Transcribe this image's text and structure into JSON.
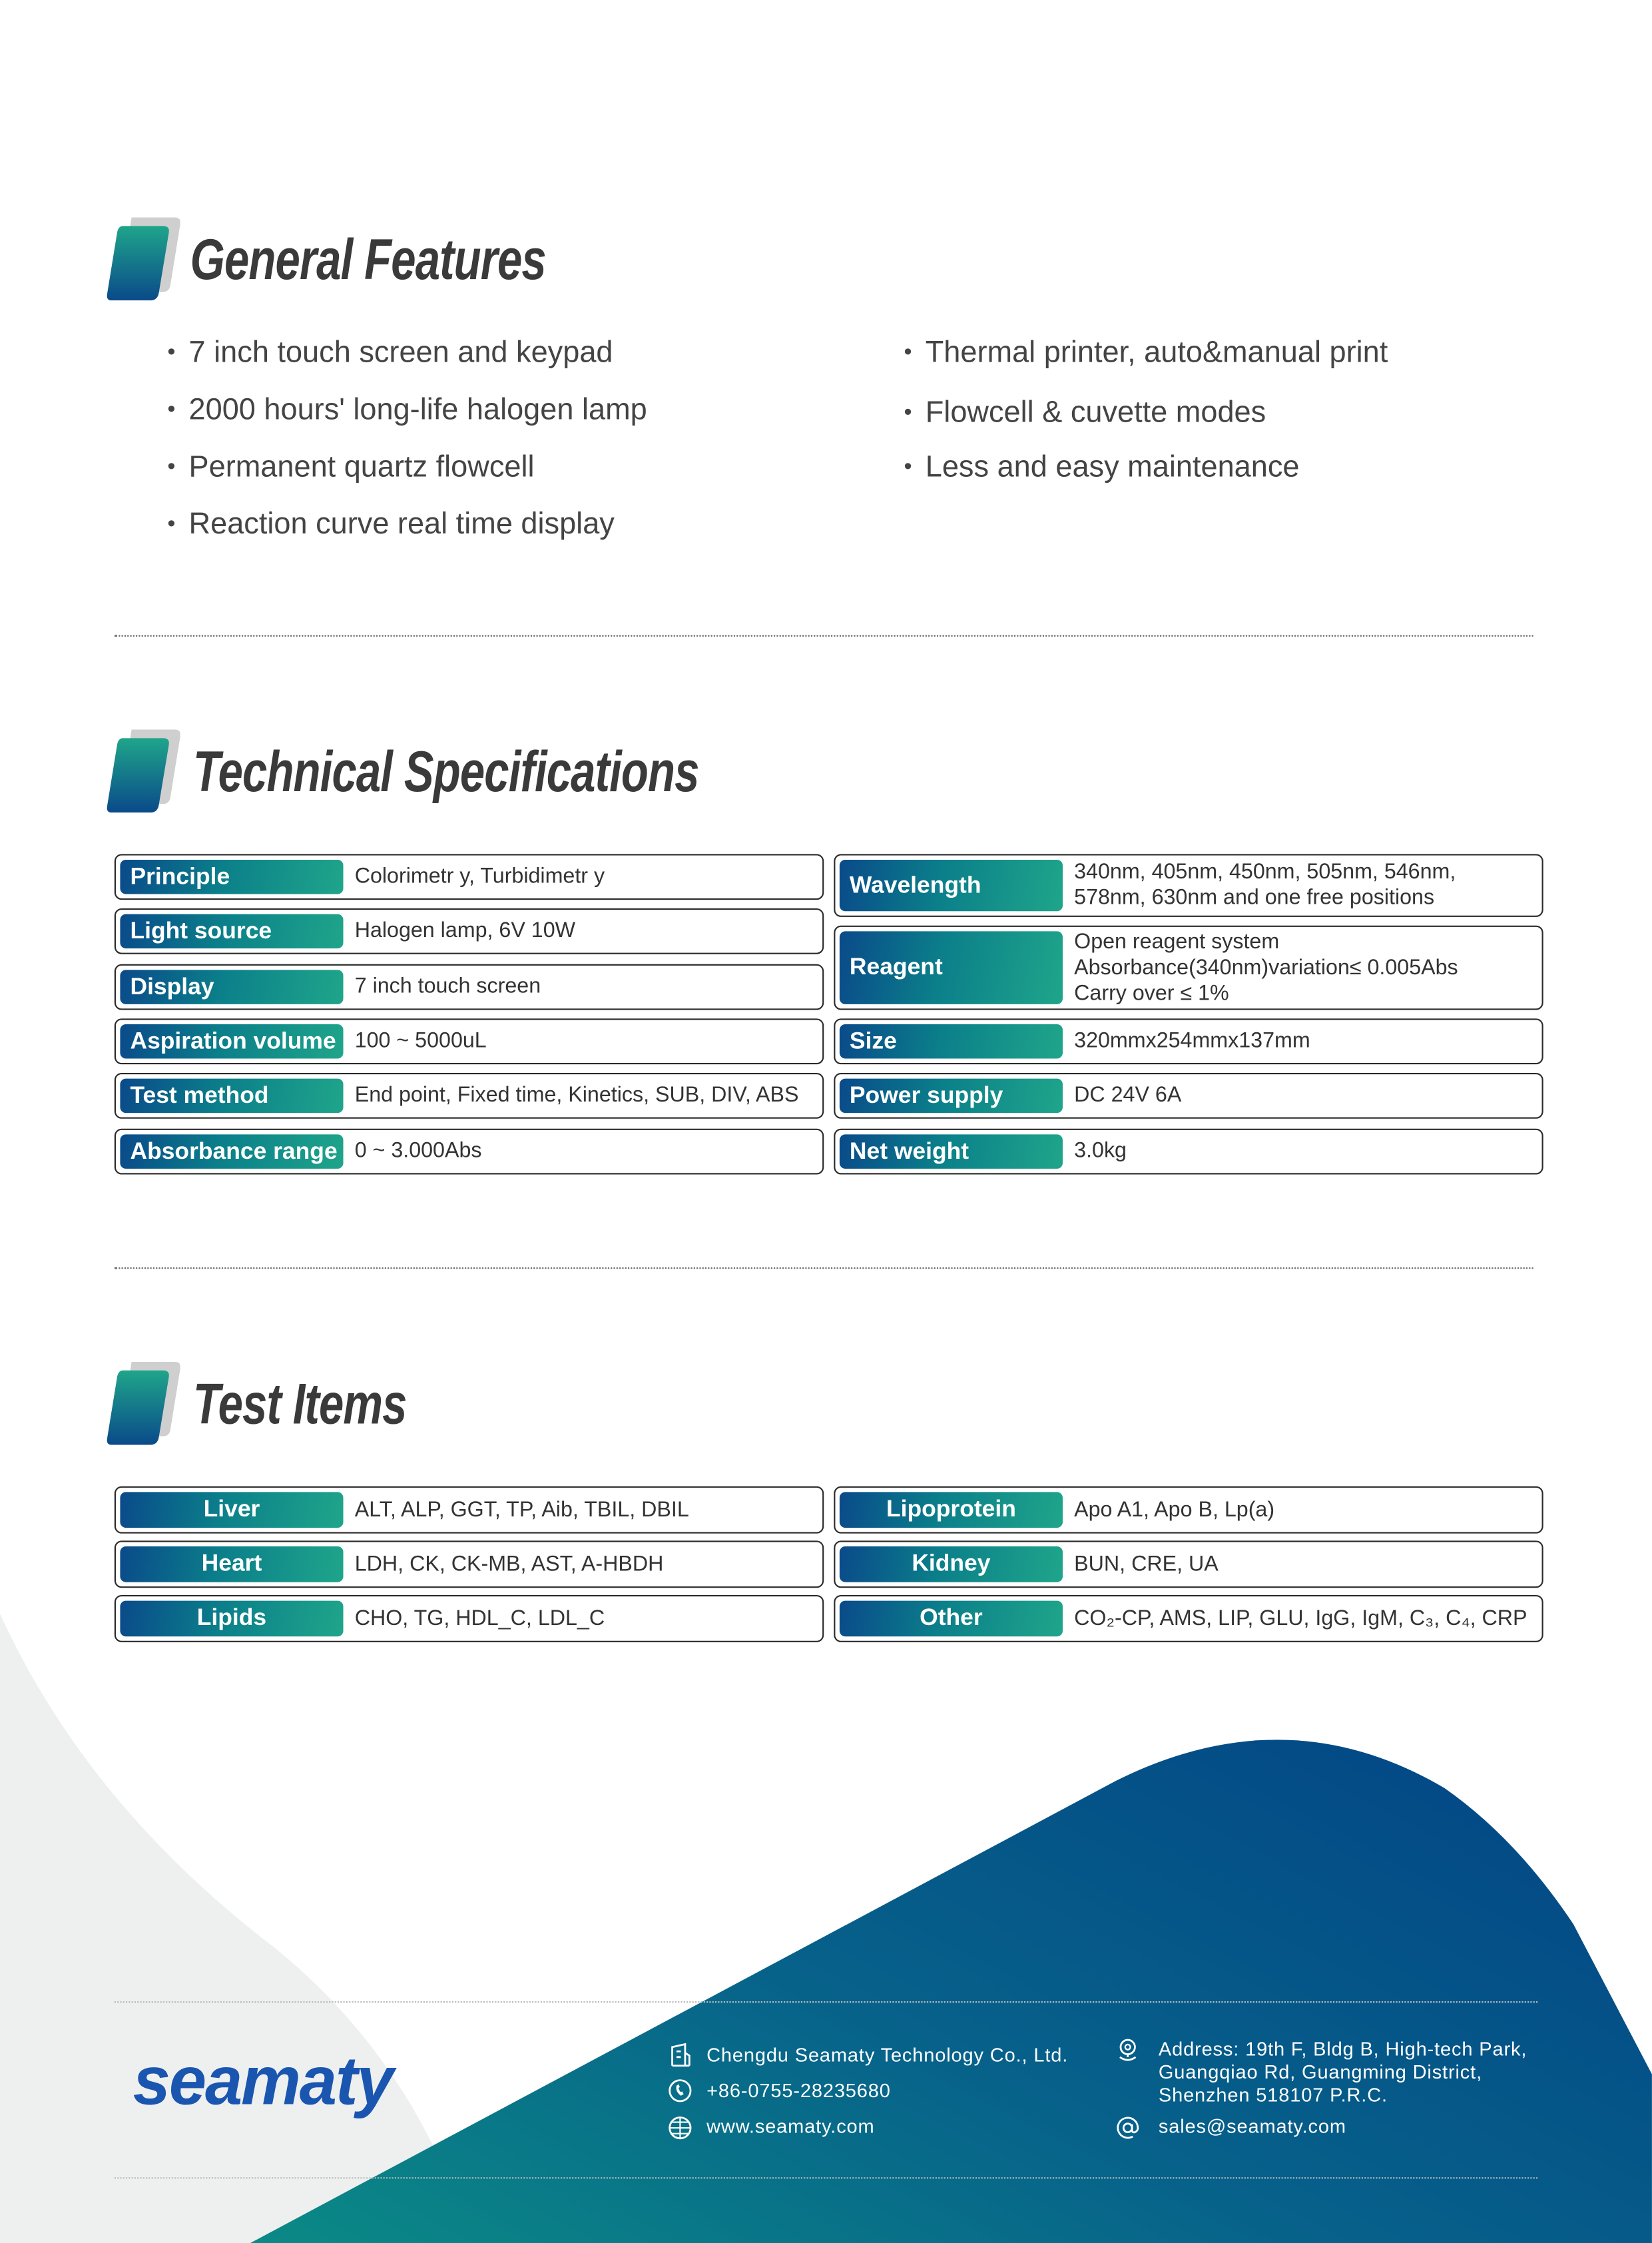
{
  "colors": {
    "brand_blue": "#0a4a8a",
    "brand_teal": "#1fa58a",
    "text": "#3a3a3a",
    "logo": "#1a56b0"
  },
  "general_features": {
    "title": "General Features",
    "left": [
      "7 inch touch screen and keypad",
      "2000 hours' long-life halogen lamp",
      "Permanent quartz flowcell",
      "Reaction curve real time display"
    ],
    "right": [
      "Thermal printer, auto&manual print",
      "Flowcell & cuvette modes",
      "Less and easy maintenance"
    ]
  },
  "technical_specifications": {
    "title": "Technical Specifications",
    "left": [
      {
        "label": "Principle",
        "value": [
          "Colorimetr y, Turbidimetr y"
        ]
      },
      {
        "label": "Light source",
        "value": [
          "Halogen lamp, 6V 10W"
        ]
      },
      {
        "label": "Display",
        "value": [
          "7 inch touch screen"
        ]
      },
      {
        "label": "Aspiration volume",
        "value": [
          "100 ~ 5000uL"
        ]
      },
      {
        "label": "Test method",
        "value": [
          "End point, Fixed time, Kinetics, SUB, DIV, ABS"
        ]
      },
      {
        "label": "Absorbance range",
        "value": [
          "0 ~ 3.000Abs"
        ]
      }
    ],
    "right": [
      {
        "label": "Wavelength",
        "value": [
          "340nm, 405nm, 450nm, 505nm, 546nm,",
          "578nm, 630nm and one free positions"
        ]
      },
      {
        "label": "Reagent",
        "value": [
          "Open reagent system",
          "Absorbance(340nm)variation≤ 0.005Abs",
          "Carry over ≤ 1%"
        ]
      },
      {
        "label": "Size",
        "value": [
          "320mmx254mmx137mm"
        ]
      },
      {
        "label": "Power supply",
        "value": [
          "DC 24V 6A"
        ]
      },
      {
        "label": "Net weight",
        "value": [
          "3.0kg"
        ]
      }
    ]
  },
  "test_items": {
    "title": "Test Items",
    "left": [
      {
        "label": "Liver",
        "value": "ALT, ALP, GGT, TP, Aib, TBIL, DBIL"
      },
      {
        "label": "Heart",
        "value": "LDH, CK, CK-MB, AST, A-HBDH"
      },
      {
        "label": "Lipids",
        "value": "CHO, TG, HDL_C, LDL_C"
      }
    ],
    "right": [
      {
        "label": "Lipoprotein",
        "value": "Apo A1, Apo B, Lp(a)"
      },
      {
        "label": "Kidney",
        "value": "BUN, CRE, UA"
      },
      {
        "label": "Other",
        "value": "CO₂-CP, AMS, LIP, GLU, IgG, IgM, C₃, C₄, CRP"
      }
    ]
  },
  "footer": {
    "logo": "seamaty",
    "company": "Chengdu Seamaty Technology Co., Ltd.",
    "phone": "+86-0755-28235680",
    "website": "www.seamaty.com",
    "address": [
      "Address: 19th F, Bldg B, High-tech Park,",
      "Guangqiao Rd, Guangming District,",
      "Shenzhen 518107 P.R.C."
    ],
    "email": "sales@seamaty.com",
    "icons": [
      "building-icon",
      "phone-icon",
      "globe-icon",
      "location-pin-icon",
      "at-sign-icon"
    ]
  }
}
